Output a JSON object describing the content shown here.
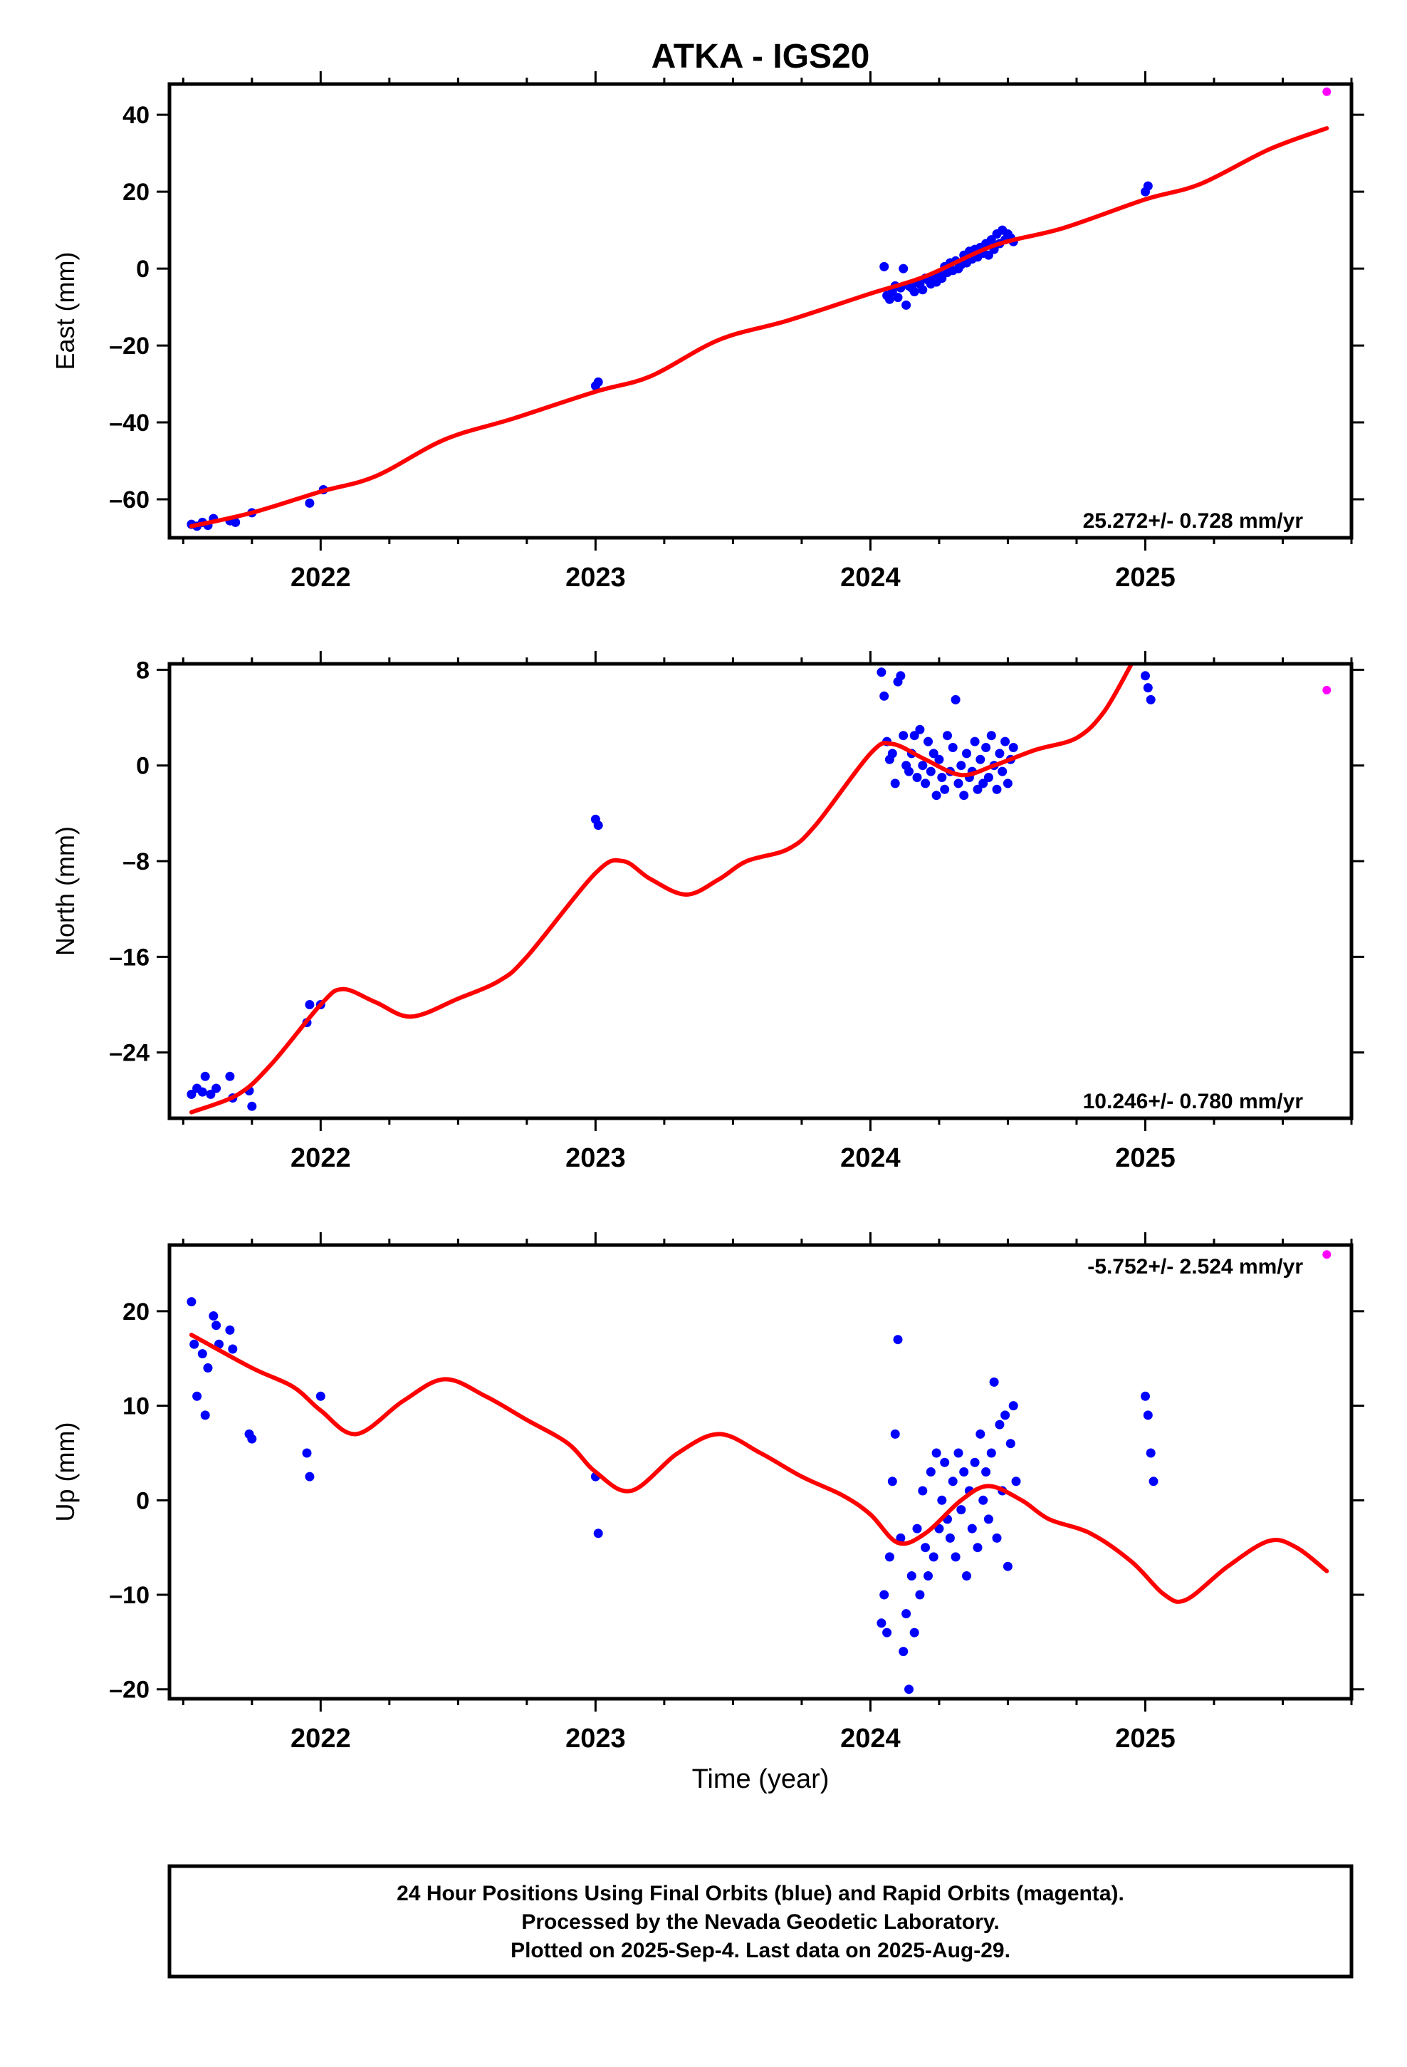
{
  "figure": {
    "title": "ATKA - IGS20",
    "xlabel": "Time (year)",
    "caption": [
      "24 Hour Positions Using Final Orbits (blue) and Rapid Orbits (magenta).",
      "Processed by the Nevada Geodetic Laboratory.",
      "Plotted on 2025-Sep-4. Last data on 2025-Aug-29."
    ]
  },
  "colors": {
    "final": "#0000ff",
    "rapid": "#ff00ff",
    "model": "#ff0000",
    "frame": "#000000"
  },
  "chart_data": [
    {
      "type": "scatter",
      "panel": "east",
      "ylabel": "East (mm)",
      "rate": "25.272+/- 0.728 mm/yr",
      "rate_position": "bottom-right",
      "xlim": [
        2021.45,
        2025.75
      ],
      "ylim": [
        -70,
        48
      ],
      "xticks": [
        "2022",
        "2023",
        "2024",
        "2025"
      ],
      "yticks": [
        -60,
        -40,
        -20,
        0,
        20,
        40
      ],
      "final_points": [
        [
          2021.53,
          -66.5
        ],
        [
          2021.55,
          -67
        ],
        [
          2021.57,
          -66
        ],
        [
          2021.59,
          -66.8
        ],
        [
          2021.61,
          -65
        ],
        [
          2021.67,
          -65.6
        ],
        [
          2021.69,
          -66
        ],
        [
          2021.75,
          -63.5
        ],
        [
          2021.96,
          -61
        ],
        [
          2022.01,
          -57.5
        ],
        [
          2023.0,
          -30.5
        ],
        [
          2023.01,
          -29.5
        ],
        [
          2024.05,
          0.5
        ],
        [
          2024.06,
          -7
        ],
        [
          2024.07,
          -8
        ],
        [
          2024.08,
          -6
        ],
        [
          2024.09,
          -4.5
        ],
        [
          2024.1,
          -7.5
        ],
        [
          2024.11,
          -5
        ],
        [
          2024.12,
          0
        ],
        [
          2024.13,
          -9.5
        ],
        [
          2024.14,
          -4.5
        ],
        [
          2024.15,
          -5
        ],
        [
          2024.16,
          -6
        ],
        [
          2024.17,
          -3.5
        ],
        [
          2024.18,
          -4
        ],
        [
          2024.19,
          -5.5
        ],
        [
          2024.2,
          -2.5
        ],
        [
          2024.21,
          -3
        ],
        [
          2024.22,
          -4
        ],
        [
          2024.23,
          -2
        ],
        [
          2024.24,
          -3.5
        ],
        [
          2024.25,
          -1.5
        ],
        [
          2024.26,
          -2.5
        ],
        [
          2024.27,
          0.5
        ],
        [
          2024.28,
          -1
        ],
        [
          2024.29,
          1.5
        ],
        [
          2024.3,
          -0.5
        ],
        [
          2024.31,
          2
        ],
        [
          2024.32,
          0
        ],
        [
          2024.33,
          1
        ],
        [
          2024.34,
          3.5
        ],
        [
          2024.35,
          1.5
        ],
        [
          2024.36,
          4.5
        ],
        [
          2024.37,
          2.5
        ],
        [
          2024.38,
          5
        ],
        [
          2024.39,
          3
        ],
        [
          2024.4,
          5.5
        ],
        [
          2024.41,
          4
        ],
        [
          2024.42,
          6.5
        ],
        [
          2024.43,
          3.5
        ],
        [
          2024.44,
          7.5
        ],
        [
          2024.45,
          5
        ],
        [
          2024.46,
          9
        ],
        [
          2024.47,
          6.5
        ],
        [
          2024.48,
          10
        ],
        [
          2024.49,
          7.5
        ],
        [
          2024.5,
          9
        ],
        [
          2024.51,
          8
        ],
        [
          2024.52,
          7
        ],
        [
          2025.0,
          20
        ],
        [
          2025.01,
          21.5
        ]
      ],
      "rapid_points": [
        [
          2025.66,
          46
        ]
      ],
      "model": [
        [
          2021.53,
          -67
        ],
        [
          2021.75,
          -63.5
        ],
        [
          2022.0,
          -58
        ],
        [
          2022.2,
          -54
        ],
        [
          2022.45,
          -44.5
        ],
        [
          2022.7,
          -39
        ],
        [
          2023.0,
          -32
        ],
        [
          2023.2,
          -28
        ],
        [
          2023.45,
          -18.5
        ],
        [
          2023.7,
          -13.5
        ],
        [
          2024.0,
          -6.5
        ],
        [
          2024.2,
          -2
        ],
        [
          2024.45,
          6
        ],
        [
          2024.7,
          10.5
        ],
        [
          2025.0,
          18
        ],
        [
          2025.2,
          22
        ],
        [
          2025.45,
          31
        ],
        [
          2025.66,
          36.5
        ]
      ]
    },
    {
      "type": "scatter",
      "panel": "north",
      "ylabel": "North (mm)",
      "rate": "10.246+/- 0.780 mm/yr",
      "rate_position": "bottom-right",
      "xlim": [
        2021.45,
        2025.75
      ],
      "ylim": [
        -29.5,
        8.5
      ],
      "xticks": [
        "2022",
        "2023",
        "2024",
        "2025"
      ],
      "yticks": [
        -24,
        -16,
        -8,
        0,
        8
      ],
      "final_points": [
        [
          2021.53,
          -27.5
        ],
        [
          2021.55,
          -27
        ],
        [
          2021.57,
          -27.3
        ],
        [
          2021.58,
          -26
        ],
        [
          2021.6,
          -27.5
        ],
        [
          2021.62,
          -27
        ],
        [
          2021.67,
          -26
        ],
        [
          2021.68,
          -27.8
        ],
        [
          2021.74,
          -27.2
        ],
        [
          2021.75,
          -28.5
        ],
        [
          2021.95,
          -21.5
        ],
        [
          2021.96,
          -20
        ],
        [
          2022.0,
          -20
        ],
        [
          2023.0,
          -4.5
        ],
        [
          2023.01,
          -5
        ],
        [
          2024.04,
          7.8
        ],
        [
          2024.05,
          5.8
        ],
        [
          2024.06,
          2
        ],
        [
          2024.07,
          0.5
        ],
        [
          2024.08,
          1
        ],
        [
          2024.09,
          -1.5
        ],
        [
          2024.1,
          7
        ],
        [
          2024.11,
          7.5
        ],
        [
          2024.12,
          2.5
        ],
        [
          2024.13,
          0
        ],
        [
          2024.14,
          -0.5
        ],
        [
          2024.15,
          1
        ],
        [
          2024.16,
          2.5
        ],
        [
          2024.17,
          -1
        ],
        [
          2024.18,
          3
        ],
        [
          2024.19,
          0
        ],
        [
          2024.2,
          -1.5
        ],
        [
          2024.21,
          2
        ],
        [
          2024.22,
          -0.5
        ],
        [
          2024.23,
          1
        ],
        [
          2024.24,
          -2.5
        ],
        [
          2024.25,
          0.5
        ],
        [
          2024.26,
          -1
        ],
        [
          2024.27,
          -2
        ],
        [
          2024.28,
          2.5
        ],
        [
          2024.29,
          -0.5
        ],
        [
          2024.3,
          1.5
        ],
        [
          2024.31,
          5.5
        ],
        [
          2024.32,
          -1.5
        ],
        [
          2024.33,
          0
        ],
        [
          2024.34,
          -2.5
        ],
        [
          2024.35,
          1
        ],
        [
          2024.36,
          -1
        ],
        [
          2024.37,
          -0.5
        ],
        [
          2024.38,
          2
        ],
        [
          2024.39,
          -2
        ],
        [
          2024.4,
          0.5
        ],
        [
          2024.41,
          -1.5
        ],
        [
          2024.42,
          1.5
        ],
        [
          2024.43,
          -1
        ],
        [
          2024.44,
          2.5
        ],
        [
          2024.45,
          0
        ],
        [
          2024.46,
          -2
        ],
        [
          2024.47,
          1
        ],
        [
          2024.48,
          -0.5
        ],
        [
          2024.49,
          2
        ],
        [
          2024.5,
          -1.5
        ],
        [
          2024.51,
          0.5
        ],
        [
          2024.52,
          1.5
        ],
        [
          2025.0,
          7.5
        ],
        [
          2025.01,
          6.5
        ],
        [
          2025.02,
          5.5
        ]
      ],
      "rapid_points": [
        [
          2025.66,
          6.3
        ]
      ],
      "model": [
        [
          2021.53,
          -29
        ],
        [
          2021.7,
          -27.5
        ],
        [
          2021.82,
          -25
        ],
        [
          2022.0,
          -20
        ],
        [
          2022.08,
          -18.7
        ],
        [
          2022.2,
          -19.8
        ],
        [
          2022.33,
          -21
        ],
        [
          2022.5,
          -19.5
        ],
        [
          2022.65,
          -18
        ],
        [
          2022.75,
          -16
        ],
        [
          2023.0,
          -9
        ],
        [
          2023.1,
          -8
        ],
        [
          2023.2,
          -9.5
        ],
        [
          2023.33,
          -10.8
        ],
        [
          2023.45,
          -9.5
        ],
        [
          2023.55,
          -8
        ],
        [
          2023.7,
          -7
        ],
        [
          2023.8,
          -5
        ],
        [
          2024.0,
          1
        ],
        [
          2024.08,
          1.8
        ],
        [
          2024.2,
          0.5
        ],
        [
          2024.33,
          -0.8
        ],
        [
          2024.45,
          0
        ],
        [
          2024.6,
          1.3
        ],
        [
          2024.75,
          2.3
        ],
        [
          2024.85,
          4.5
        ],
        [
          2024.95,
          8.5
        ]
      ]
    },
    {
      "type": "scatter",
      "panel": "up",
      "ylabel": "Up (mm)",
      "rate": "-5.752+/- 2.524 mm/yr",
      "rate_position": "top-right",
      "xlim": [
        2021.45,
        2025.75
      ],
      "ylim": [
        -21,
        27
      ],
      "xticks": [
        "2022",
        "2023",
        "2024",
        "2025"
      ],
      "yticks": [
        -20,
        -10,
        0,
        10,
        20
      ],
      "final_points": [
        [
          2021.53,
          21
        ],
        [
          2021.54,
          16.5
        ],
        [
          2021.55,
          11
        ],
        [
          2021.57,
          15.5
        ],
        [
          2021.58,
          9
        ],
        [
          2021.59,
          14
        ],
        [
          2021.61,
          19.5
        ],
        [
          2021.62,
          18.5
        ],
        [
          2021.63,
          16.5
        ],
        [
          2021.67,
          18
        ],
        [
          2021.68,
          16
        ],
        [
          2021.74,
          7
        ],
        [
          2021.75,
          6.5
        ],
        [
          2021.95,
          5
        ],
        [
          2021.96,
          2.5
        ],
        [
          2022.0,
          11
        ],
        [
          2023.0,
          2.5
        ],
        [
          2023.01,
          -3.5
        ],
        [
          2024.04,
          -13
        ],
        [
          2024.05,
          -10
        ],
        [
          2024.06,
          -14
        ],
        [
          2024.07,
          -6
        ],
        [
          2024.08,
          2
        ],
        [
          2024.09,
          7
        ],
        [
          2024.1,
          17
        ],
        [
          2024.11,
          -4
        ],
        [
          2024.12,
          -16
        ],
        [
          2024.13,
          -12
        ],
        [
          2024.14,
          -20
        ],
        [
          2024.15,
          -8
        ],
        [
          2024.16,
          -14
        ],
        [
          2024.17,
          -3
        ],
        [
          2024.18,
          -10
        ],
        [
          2024.19,
          1
        ],
        [
          2024.2,
          -5
        ],
        [
          2024.21,
          -8
        ],
        [
          2024.22,
          3
        ],
        [
          2024.23,
          -6
        ],
        [
          2024.24,
          5
        ],
        [
          2024.25,
          -3
        ],
        [
          2024.26,
          0
        ],
        [
          2024.27,
          4
        ],
        [
          2024.28,
          -2
        ],
        [
          2024.29,
          -4
        ],
        [
          2024.3,
          2
        ],
        [
          2024.31,
          -6
        ],
        [
          2024.32,
          5
        ],
        [
          2024.33,
          -1
        ],
        [
          2024.34,
          3
        ],
        [
          2024.35,
          -8
        ],
        [
          2024.36,
          1
        ],
        [
          2024.37,
          -3
        ],
        [
          2024.38,
          4
        ],
        [
          2024.39,
          -5
        ],
        [
          2024.4,
          7
        ],
        [
          2024.41,
          0
        ],
        [
          2024.42,
          3
        ],
        [
          2024.43,
          -2
        ],
        [
          2024.44,
          5
        ],
        [
          2024.45,
          12.5
        ],
        [
          2024.46,
          -4
        ],
        [
          2024.47,
          8
        ],
        [
          2024.48,
          1
        ],
        [
          2024.49,
          9
        ],
        [
          2024.5,
          -7
        ],
        [
          2024.51,
          6
        ],
        [
          2024.52,
          10
        ],
        [
          2024.53,
          2
        ],
        [
          2025.0,
          11
        ],
        [
          2025.01,
          9
        ],
        [
          2025.02,
          5
        ],
        [
          2025.03,
          2
        ]
      ],
      "rapid_points": [
        [
          2025.66,
          26
        ]
      ],
      "model": [
        [
          2021.53,
          17.5
        ],
        [
          2021.75,
          14
        ],
        [
          2021.9,
          12
        ],
        [
          2022.0,
          9.5
        ],
        [
          2022.13,
          7
        ],
        [
          2022.3,
          10.5
        ],
        [
          2022.45,
          12.8
        ],
        [
          2022.6,
          11
        ],
        [
          2022.75,
          8.5
        ],
        [
          2022.9,
          6
        ],
        [
          2023.0,
          3
        ],
        [
          2023.13,
          1
        ],
        [
          2023.3,
          5
        ],
        [
          2023.45,
          7
        ],
        [
          2023.6,
          5
        ],
        [
          2023.75,
          2.5
        ],
        [
          2023.9,
          0.5
        ],
        [
          2024.0,
          -1.5
        ],
        [
          2024.1,
          -4.5
        ],
        [
          2024.2,
          -3.5
        ],
        [
          2024.33,
          0
        ],
        [
          2024.43,
          1.5
        ],
        [
          2024.55,
          0
        ],
        [
          2024.65,
          -2
        ],
        [
          2024.8,
          -3.5
        ],
        [
          2024.95,
          -6.5
        ],
        [
          2025.07,
          -10
        ],
        [
          2025.15,
          -10.5
        ],
        [
          2025.3,
          -7
        ],
        [
          2025.45,
          -4.3
        ],
        [
          2025.55,
          -5
        ],
        [
          2025.66,
          -7.5
        ]
      ]
    }
  ]
}
